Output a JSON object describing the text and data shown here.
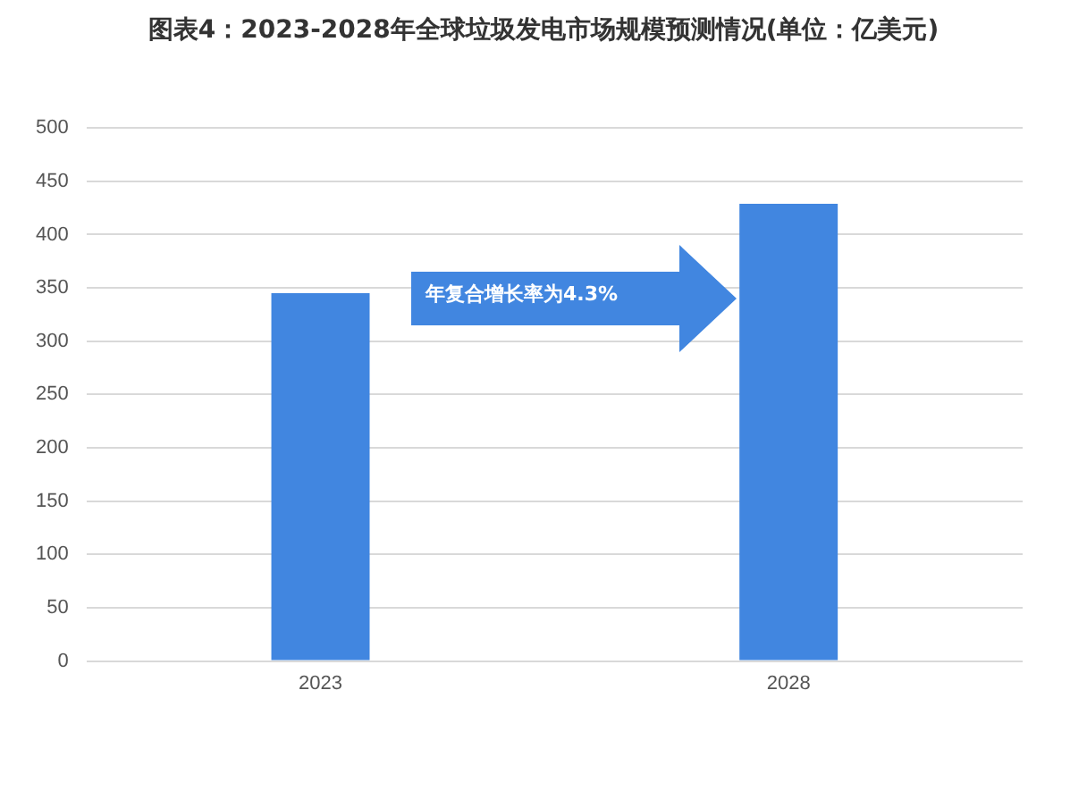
{
  "chart_data": {
    "type": "bar",
    "title": "图表4：2023-2028年全球垃圾发电市场规模预测情况(单位：亿美元)",
    "categories": [
      "2023",
      "2028"
    ],
    "values": [
      345,
      429
    ],
    "color": "#4186e0",
    "ylim": [
      0,
      500
    ],
    "yticks": [
      0,
      50,
      100,
      150,
      200,
      250,
      300,
      350,
      400,
      450,
      500
    ],
    "grid": "y",
    "legend": false,
    "annotations": [
      "年复合增长率为4.3%"
    ]
  }
}
